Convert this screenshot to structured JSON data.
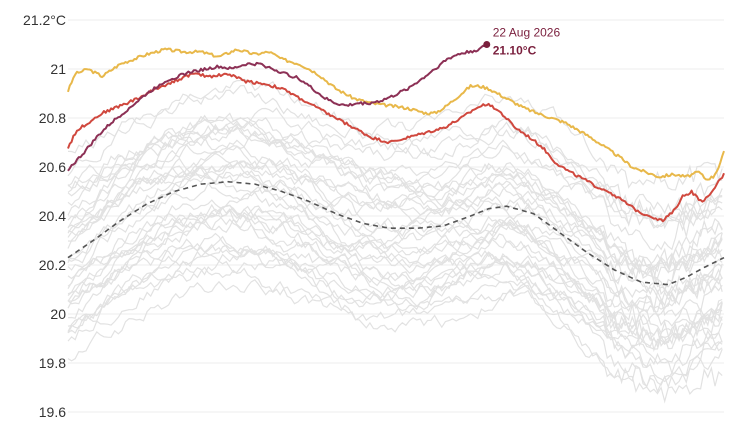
{
  "chart_data": {
    "type": "line",
    "title": "",
    "xlabel": "",
    "ylabel": "",
    "ylim": [
      19.6,
      21.2
    ],
    "xlim": [
      1,
      366
    ],
    "y_ticks": [
      {
        "value": 21.2,
        "label": "21.2°C"
      },
      {
        "value": 21.0,
        "label": "21"
      },
      {
        "value": 20.8,
        "label": "20.8"
      },
      {
        "value": 20.6,
        "label": "20.6"
      },
      {
        "value": 20.4,
        "label": "20.4"
      },
      {
        "value": 20.2,
        "label": "20.2"
      },
      {
        "value": 20.0,
        "label": "20"
      },
      {
        "value": 19.8,
        "label": "19.8"
      },
      {
        "value": 19.6,
        "label": "19.6"
      }
    ],
    "grid": true,
    "legend": "none",
    "annotation": {
      "date_label": "22 Aug 2026",
      "value_label": "21.10°C",
      "x": 234,
      "y": 21.1,
      "color": "#7a1f3d"
    },
    "series": [
      {
        "color": "#e8b84a",
        "x": [
          1,
          5,
          12,
          20,
          30,
          45,
          55,
          65,
          75,
          85,
          95,
          105,
          113,
          120,
          130,
          140,
          150,
          160,
          170,
          180,
          190,
          200,
          205,
          210,
          215,
          220,
          225,
          230,
          235,
          240,
          245,
          250,
          255,
          262,
          270,
          278,
          285,
          292,
          300,
          308,
          315,
          322,
          330,
          338,
          345,
          352,
          356,
          360,
          363,
          366
        ],
        "y": [
          20.91,
          20.98,
          21.0,
          20.97,
          21.02,
          21.06,
          21.08,
          21.07,
          21.07,
          21.05,
          21.08,
          21.06,
          21.07,
          21.04,
          21.02,
          20.98,
          20.92,
          20.88,
          20.86,
          20.85,
          20.84,
          20.82,
          20.82,
          20.84,
          20.87,
          20.9,
          20.93,
          20.93,
          20.92,
          20.9,
          20.88,
          20.86,
          20.84,
          20.82,
          20.8,
          20.78,
          20.75,
          20.72,
          20.68,
          20.64,
          20.6,
          20.58,
          20.56,
          20.57,
          20.56,
          20.58,
          20.55,
          20.56,
          20.6,
          20.66
        ]
      },
      {
        "color": "#d0483e",
        "x": [
          1,
          6,
          12,
          20,
          30,
          40,
          50,
          60,
          70,
          80,
          90,
          100,
          110,
          120,
          130,
          140,
          150,
          160,
          170,
          180,
          190,
          200,
          210,
          220,
          228,
          235,
          242,
          250,
          258,
          265,
          272,
          280,
          288,
          295,
          302,
          310,
          318,
          325,
          332,
          338,
          343,
          348,
          353,
          358,
          362,
          366
        ],
        "y": [
          20.68,
          20.75,
          20.78,
          20.82,
          20.85,
          20.88,
          20.92,
          20.95,
          20.98,
          20.97,
          20.98,
          20.95,
          20.94,
          20.92,
          20.88,
          20.84,
          20.8,
          20.76,
          20.72,
          20.7,
          20.72,
          20.74,
          20.76,
          20.8,
          20.84,
          20.86,
          20.82,
          20.76,
          20.72,
          20.68,
          20.62,
          20.58,
          20.55,
          20.52,
          20.5,
          20.46,
          20.42,
          20.4,
          20.38,
          20.42,
          20.48,
          20.5,
          20.46,
          20.48,
          20.53,
          20.57
        ]
      },
      {
        "color": "#8c3055",
        "x": [
          1,
          5,
          10,
          18,
          25,
          35,
          45,
          55,
          62,
          70,
          78,
          85,
          92,
          100,
          108,
          115,
          122,
          130,
          137,
          144,
          150,
          156,
          162,
          168,
          175,
          182,
          190,
          198,
          205,
          212,
          218,
          224,
          230,
          234
        ],
        "y": [
          20.59,
          20.62,
          20.66,
          20.73,
          20.78,
          20.84,
          20.9,
          20.95,
          20.97,
          20.99,
          21.0,
          21.01,
          21.0,
          21.02,
          21.02,
          21.0,
          20.98,
          20.96,
          20.92,
          20.88,
          20.86,
          20.85,
          20.86,
          20.86,
          20.87,
          20.89,
          20.92,
          20.96,
          21.0,
          21.04,
          21.06,
          21.07,
          21.08,
          21.1
        ]
      },
      {
        "color": "#555555",
        "dashed": true,
        "x": [
          1,
          15,
          30,
          45,
          60,
          75,
          90,
          105,
          120,
          135,
          150,
          165,
          180,
          195,
          210,
          225,
          235,
          245,
          260,
          275,
          290,
          305,
          320,
          335,
          345,
          355,
          366
        ],
        "y": [
          20.23,
          20.3,
          20.38,
          20.45,
          20.5,
          20.53,
          20.54,
          20.53,
          20.5,
          20.46,
          20.41,
          20.37,
          20.35,
          20.35,
          20.36,
          20.4,
          20.43,
          20.44,
          20.41,
          20.33,
          20.25,
          20.18,
          20.13,
          20.12,
          20.15,
          20.19,
          20.23
        ]
      }
    ],
    "background_series": [
      {
        "offset": 0.0,
        "phase": 0
      },
      {
        "offset": -0.05,
        "phase": 1
      },
      {
        "offset": 0.06,
        "phase": 2
      },
      {
        "offset": -0.1,
        "phase": 3
      },
      {
        "offset": 0.12,
        "phase": 4
      },
      {
        "offset": -0.15,
        "phase": 5
      },
      {
        "offset": 0.18,
        "phase": 6
      },
      {
        "offset": -0.2,
        "phase": 7
      },
      {
        "offset": 0.24,
        "phase": 8
      },
      {
        "offset": -0.24,
        "phase": 9
      },
      {
        "offset": 0.3,
        "phase": 10
      },
      {
        "offset": -0.28,
        "phase": 11
      },
      {
        "offset": 0.35,
        "phase": 12
      },
      {
        "offset": -0.32,
        "phase": 13
      },
      {
        "offset": 0.04,
        "phase": 14
      },
      {
        "offset": -0.08,
        "phase": 15
      },
      {
        "offset": 0.09,
        "phase": 16
      },
      {
        "offset": -0.13,
        "phase": 17
      },
      {
        "offset": 0.15,
        "phase": 18
      },
      {
        "offset": -0.18,
        "phase": 19
      },
      {
        "offset": 0.2,
        "phase": 20
      },
      {
        "offset": -0.22,
        "phase": 21
      },
      {
        "offset": 0.27,
        "phase": 22
      },
      {
        "offset": -0.26,
        "phase": 23
      },
      {
        "offset": 0.02,
        "phase": 24
      },
      {
        "offset": -0.03,
        "phase": 25
      },
      {
        "offset": 0.1,
        "phase": 26
      },
      {
        "offset": -0.36,
        "phase": 27
      },
      {
        "offset": 0.4,
        "phase": 28
      },
      {
        "offset": -0.4,
        "phase": 29
      },
      {
        "offset": 0.07,
        "phase": 30
      },
      {
        "offset": -0.11,
        "phase": 31
      },
      {
        "offset": 0.14,
        "phase": 32
      },
      {
        "offset": -0.17,
        "phase": 33
      },
      {
        "offset": 0.22,
        "phase": 34
      },
      {
        "offset": -0.3,
        "phase": 35
      }
    ]
  }
}
